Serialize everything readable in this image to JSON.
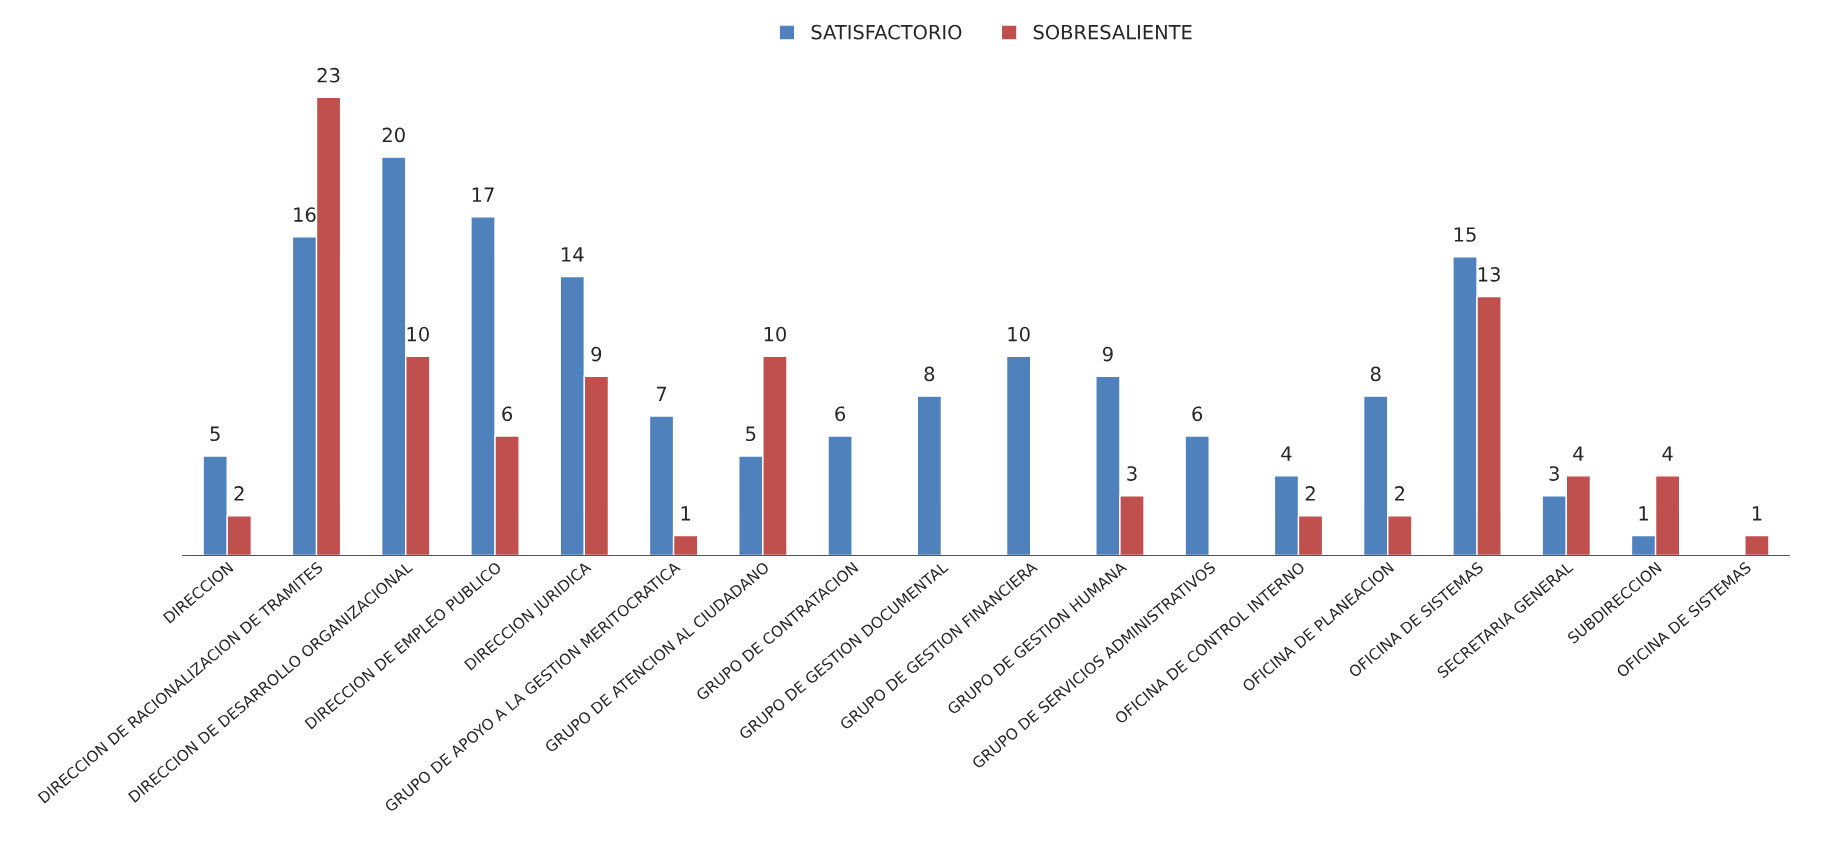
{
  "chart_data": {
    "type": "bar",
    "categories": [
      "DIRECCION",
      "DIRECCION DE RACIONALIZACION DE TRAMITES",
      "DIRECCION DE DESARROLLO ORGANIZACIONAL",
      "DIRECCION DE EMPLEO PUBLICO",
      "DIRECCION JURIDICA",
      "GRUPO DE APOYO A LA GESTION MERITOCRATICA",
      "GRUPO DE ATENCION AL CIUDADANO",
      "GRUPO DE CONTRATACION",
      "GRUPO DE GESTION DOCUMENTAL",
      "GRUPO DE GESTION FINANCIERA",
      "GRUPO DE GESTION HUMANA",
      "GRUPO DE SERVICIOS ADMINISTRATIVOS",
      "OFICINA DE CONTROL INTERNO",
      "OFICINA DE PLANEACION",
      "OFICINA DE SISTEMAS",
      "SECRETARIA GENERAL",
      "SUBDIRECCION",
      "OFICINA DE SISTEMAS"
    ],
    "series": [
      {
        "name": "SATISFACTORIO",
        "color": "#4f81bd",
        "values": [
          5,
          16,
          20,
          17,
          14,
          7,
          5,
          6,
          8,
          10,
          9,
          6,
          4,
          8,
          15,
          3,
          1,
          null
        ]
      },
      {
        "name": "SOBRESALIENTE",
        "color": "#c0504d",
        "values": [
          2,
          23,
          10,
          6,
          9,
          1,
          10,
          null,
          null,
          null,
          3,
          null,
          2,
          2,
          13,
          4,
          4,
          1
        ]
      }
    ],
    "data_labels": true,
    "legend": "top",
    "grid": false,
    "tick_labels": "x"
  }
}
